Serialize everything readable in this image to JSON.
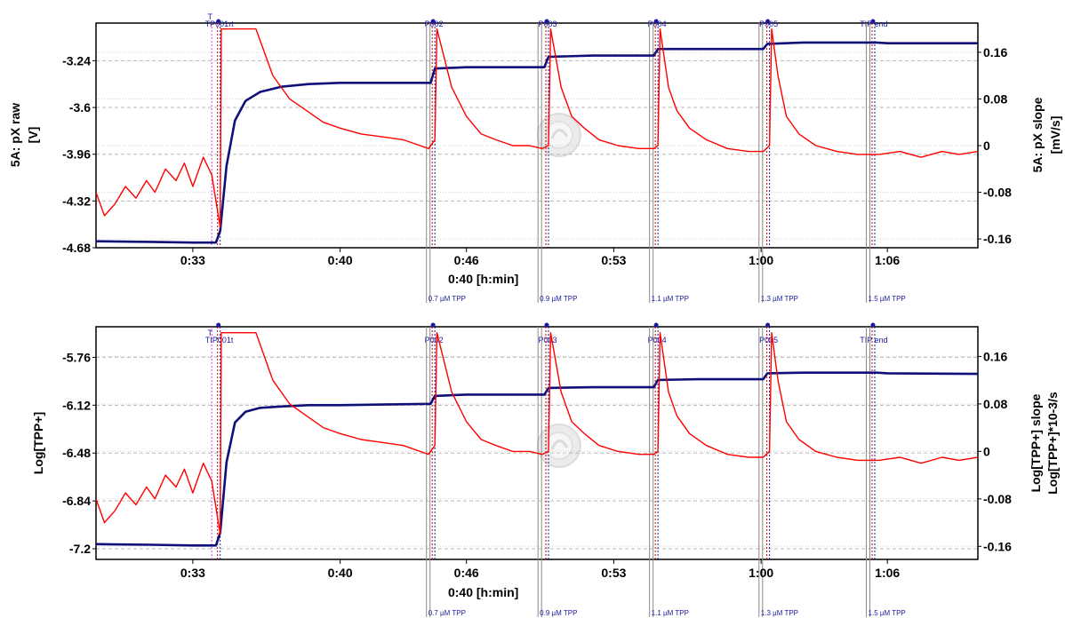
{
  "chart_data": [
    {
      "type": "line",
      "panel": "top",
      "xlabel": "0:40 [h:min]",
      "ylabel_left": [
        "5A: pX raw",
        "[V]"
      ],
      "ylabel_right": [
        "5A: pX slope",
        "[mV/s]"
      ],
      "x_tick_labels": [
        "0:33",
        "0:40",
        "0:46",
        "0:53",
        "1:00",
        "1:06"
      ],
      "x_ticks_min": [
        33,
        40,
        46,
        53,
        60,
        66
      ],
      "xlim_min": [
        28.4,
        70.3
      ],
      "y_left_ticks": [
        "-3.24",
        "-3.6",
        "-3.96",
        "-4.32",
        "-4.68"
      ],
      "y_left_values": [
        -3.24,
        -3.6,
        -3.96,
        -4.32,
        -4.68
      ],
      "ylim_left": [
        -4.68,
        -2.95
      ],
      "y_right_ticks": [
        "0.16",
        "0.08",
        "0",
        "-0.08",
        "-0.16"
      ],
      "y_right_values": [
        0.16,
        0.08,
        0,
        -0.08,
        -0.16
      ],
      "ylim_right": [
        -0.175,
        0.21
      ],
      "grid": true,
      "events": [
        {
          "label": "T",
          "t": 33.9,
          "color": "#e040e0"
        },
        {
          "label": "TP001rt",
          "t": 34.3,
          "color": "#1a1aa0"
        },
        {
          "label": "P002",
          "t": 44.5,
          "color": "#1a1aa0"
        },
        {
          "label": "P003",
          "t": 49.9,
          "color": "#1a1aa0"
        },
        {
          "label": "P004",
          "t": 55.1,
          "color": "#1a1aa0"
        },
        {
          "label": "P005",
          "t": 60.4,
          "color": "#1a1aa0"
        },
        {
          "label": "TIP end",
          "t": 65.4,
          "color": "#1a1aa0"
        }
      ],
      "concentrations": [
        {
          "label": "0.7 µM TPP",
          "t": 44.1
        },
        {
          "label": "0.9 µM TPP",
          "t": 49.4
        },
        {
          "label": "1.1 µM TPP",
          "t": 54.7
        },
        {
          "label": "1.3 µM TPP",
          "t": 59.9
        },
        {
          "label": "1.5 µM TPP",
          "t": 65.0
        }
      ],
      "series": [
        {
          "name": "5A: pX raw",
          "axis": "left",
          "color": "#10107a",
          "x": [
            28.4,
            31,
            33,
            34.1,
            34.3,
            34.6,
            35,
            35.5,
            36.2,
            37.2,
            38.5,
            40,
            42,
            44.3,
            44.5,
            46,
            49.7,
            49.9,
            52,
            54.9,
            55.1,
            57,
            60.1,
            60.3,
            62,
            65.5,
            66,
            70.3
          ],
          "values": [
            -4.63,
            -4.635,
            -4.64,
            -4.64,
            -4.55,
            -4.05,
            -3.7,
            -3.55,
            -3.48,
            -3.44,
            -3.42,
            -3.41,
            -3.41,
            -3.41,
            -3.3,
            -3.29,
            -3.29,
            -3.21,
            -3.2,
            -3.2,
            -3.15,
            -3.15,
            -3.15,
            -3.11,
            -3.1,
            -3.1,
            -3.105,
            -3.105
          ]
        },
        {
          "name": "5A: pX slope",
          "axis": "right",
          "color": "#ff0000",
          "x": [
            28.4,
            28.8,
            29.3,
            29.8,
            30.3,
            30.8,
            31.2,
            31.7,
            32.2,
            32.6,
            33.0,
            33.5,
            33.9,
            34.3,
            34.35,
            36.0,
            36.8,
            37.6,
            38.4,
            39.2,
            40.0,
            41.0,
            42.0,
            43.0,
            43.8,
            44.2,
            44.5,
            44.6,
            45.3,
            46.0,
            46.7,
            47.4,
            48.2,
            49.0,
            49.6,
            49.9,
            50.0,
            50.5,
            51.0,
            51.6,
            52.3,
            53.2,
            54.2,
            54.9,
            55.1,
            55.2,
            55.6,
            56.0,
            56.6,
            57.4,
            58.4,
            59.4,
            60.1,
            60.4,
            60.5,
            60.8,
            61.2,
            61.8,
            62.6,
            63.6,
            64.6,
            65.6,
            66.6,
            67.6,
            68.6,
            69.4,
            70.3
          ],
          "values": [
            -0.08,
            -0.12,
            -0.1,
            -0.07,
            -0.09,
            -0.06,
            -0.08,
            -0.04,
            -0.06,
            -0.03,
            -0.07,
            -0.02,
            -0.05,
            -0.14,
            0.2,
            0.2,
            0.12,
            0.08,
            0.06,
            0.04,
            0.03,
            0.02,
            0.015,
            0.01,
            0.0,
            -0.005,
            0.01,
            0.2,
            0.1,
            0.05,
            0.02,
            0.01,
            0.0,
            0.0,
            -0.005,
            0.0,
            0.2,
            0.1,
            0.05,
            0.03,
            0.01,
            0.0,
            -0.005,
            -0.005,
            0.0,
            0.2,
            0.1,
            0.06,
            0.03,
            0.01,
            -0.005,
            -0.01,
            -0.01,
            0.0,
            0.2,
            0.12,
            0.05,
            0.02,
            0.0,
            -0.01,
            -0.015,
            -0.015,
            -0.01,
            -0.02,
            -0.01,
            -0.015,
            -0.01
          ]
        }
      ]
    },
    {
      "type": "line",
      "panel": "bottom",
      "xlabel": "0:40 [h:min]",
      "ylabel_left": [
        "Log[TPP+]"
      ],
      "ylabel_right": [
        "Log[TPP+] slope",
        "Log[TPP+]*10-3/s"
      ],
      "x_tick_labels": [
        "0:33",
        "0:40",
        "0:46",
        "0:53",
        "1:00",
        "1:06"
      ],
      "x_ticks_min": [
        33,
        40,
        46,
        53,
        60,
        66
      ],
      "xlim_min": [
        28.4,
        70.3
      ],
      "y_left_ticks": [
        "-5.76",
        "-6.12",
        "-6.48",
        "-6.84",
        "-7.2"
      ],
      "y_left_values": [
        -5.76,
        -6.12,
        -6.48,
        -6.84,
        -7.2
      ],
      "ylim_left": [
        -7.28,
        -5.53
      ],
      "y_right_ticks": [
        "0.16",
        "0.08",
        "0",
        "-0.08",
        "-0.16"
      ],
      "y_right_values": [
        0.16,
        0.08,
        0,
        -0.08,
        -0.16
      ],
      "ylim_right": [
        -0.182,
        0.21
      ],
      "grid": true,
      "events": [
        {
          "label": "T",
          "t": 33.9,
          "color": "#e040e0"
        },
        {
          "label": "TIP001t",
          "t": 34.3,
          "color": "#1a1aa0"
        },
        {
          "label": "P002",
          "t": 44.5,
          "color": "#1a1aa0"
        },
        {
          "label": "P003",
          "t": 49.9,
          "color": "#1a1aa0"
        },
        {
          "label": "P004",
          "t": 55.1,
          "color": "#1a1aa0"
        },
        {
          "label": "P005",
          "t": 60.4,
          "color": "#1a1aa0"
        },
        {
          "label": "TIP end",
          "t": 65.4,
          "color": "#1a1aa0"
        }
      ],
      "concentrations": [
        {
          "label": "0.7 µM TPP",
          "t": 44.1
        },
        {
          "label": "0.9 µM TPP",
          "t": 49.4
        },
        {
          "label": "1.1 µM TPP",
          "t": 54.7
        },
        {
          "label": "1.3 µM TPP",
          "t": 59.9
        },
        {
          "label": "1.5 µM TPP",
          "t": 65.0
        }
      ],
      "series": [
        {
          "name": "Log[TPP+]",
          "axis": "left",
          "color": "#10107a",
          "x": [
            28.4,
            31,
            33,
            34.1,
            34.3,
            34.6,
            35,
            35.5,
            36.2,
            37.2,
            38.5,
            40,
            42,
            44.3,
            44.5,
            46,
            49.7,
            49.9,
            52,
            54.9,
            55.1,
            57,
            60.1,
            60.3,
            62,
            65.5,
            66,
            70.3
          ],
          "values": [
            -7.165,
            -7.17,
            -7.175,
            -7.175,
            -7.08,
            -6.55,
            -6.25,
            -6.17,
            -6.14,
            -6.13,
            -6.12,
            -6.12,
            -6.115,
            -6.11,
            -6.05,
            -6.04,
            -6.04,
            -5.99,
            -5.985,
            -5.985,
            -5.93,
            -5.925,
            -5.925,
            -5.88,
            -5.875,
            -5.875,
            -5.88,
            -5.885
          ]
        },
        {
          "name": "Log[TPP+] slope",
          "axis": "right",
          "color": "#ff0000",
          "x": [
            28.4,
            28.8,
            29.3,
            29.8,
            30.3,
            30.8,
            31.2,
            31.7,
            32.2,
            32.6,
            33.0,
            33.5,
            33.9,
            34.3,
            34.35,
            36.0,
            36.8,
            37.6,
            38.4,
            39.2,
            40.0,
            41.0,
            42.0,
            43.0,
            43.8,
            44.2,
            44.5,
            44.6,
            45.3,
            46.0,
            46.7,
            47.4,
            48.2,
            49.0,
            49.6,
            49.9,
            50.0,
            50.5,
            51.0,
            51.6,
            52.3,
            53.2,
            54.2,
            54.9,
            55.1,
            55.2,
            55.6,
            56.0,
            56.6,
            57.4,
            58.4,
            59.4,
            60.1,
            60.4,
            60.5,
            60.8,
            61.2,
            61.8,
            62.6,
            63.6,
            64.6,
            65.6,
            66.6,
            67.6,
            68.6,
            69.4,
            70.3
          ],
          "values": [
            -0.08,
            -0.12,
            -0.1,
            -0.07,
            -0.09,
            -0.06,
            -0.08,
            -0.04,
            -0.06,
            -0.03,
            -0.07,
            -0.02,
            -0.05,
            -0.14,
            0.2,
            0.2,
            0.12,
            0.08,
            0.06,
            0.04,
            0.03,
            0.02,
            0.015,
            0.01,
            0.0,
            -0.005,
            0.01,
            0.2,
            0.1,
            0.05,
            0.02,
            0.01,
            0.0,
            0.0,
            -0.005,
            0.0,
            0.2,
            0.1,
            0.05,
            0.03,
            0.01,
            0.0,
            -0.005,
            -0.005,
            0.0,
            0.2,
            0.1,
            0.06,
            0.03,
            0.01,
            -0.005,
            -0.01,
            -0.01,
            0.0,
            0.2,
            0.12,
            0.05,
            0.02,
            0.0,
            -0.01,
            -0.015,
            -0.015,
            -0.01,
            -0.02,
            -0.01,
            -0.015,
            -0.01
          ]
        }
      ]
    }
  ]
}
